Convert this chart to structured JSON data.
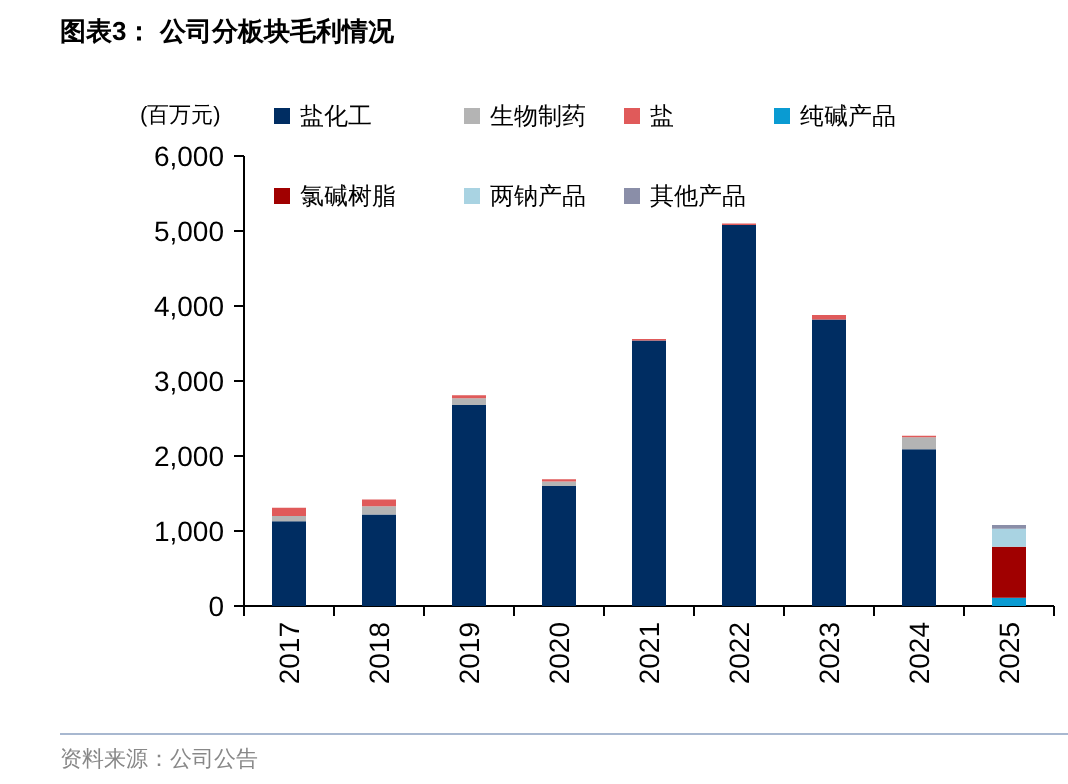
{
  "chart_data": {
    "type": "bar",
    "stacked": true,
    "title": "图表3：  公司分板块毛利情况",
    "ylabel": "(百万元)",
    "annotations": [
      "资料来源：公司公告"
    ],
    "categories": [
      "2017",
      "2018",
      "2019",
      "2020",
      "2021",
      "2022",
      "2023",
      "2024",
      "2025"
    ],
    "series": [
      {
        "name": "盐化工",
        "color": "#002d62",
        "values": [
          1130,
          1220,
          2680,
          1600,
          3540,
          5080,
          3820,
          2090,
          0
        ]
      },
      {
        "name": "生物制药",
        "color": "#b4b4b4",
        "values": [
          70,
          110,
          90,
          60,
          null,
          null,
          0,
          160,
          0
        ]
      },
      {
        "name": "盐",
        "color": "#e05a5a",
        "values": [
          110,
          90,
          40,
          30,
          20,
          20,
          60,
          20,
          0
        ]
      },
      {
        "name": "纯碱产品",
        "color": "#0a9bd2",
        "values": [
          0,
          0,
          0,
          0,
          0,
          0,
          0,
          0,
          110
        ]
      },
      {
        "name": "氯碱树脂",
        "color": "#a00000",
        "values": [
          0,
          0,
          0,
          0,
          0,
          0,
          0,
          0,
          680
        ]
      },
      {
        "name": "两钠产品",
        "color": "#a9d3e2",
        "values": [
          0,
          0,
          0,
          0,
          0,
          0,
          0,
          0,
          240
        ]
      },
      {
        "name": "其他产品",
        "color": "#8a8ea8",
        "values": [
          0,
          0,
          0,
          0,
          0,
          0,
          0,
          0,
          50
        ]
      }
    ],
    "ylim": [
      0,
      6000
    ],
    "yticks": [
      {
        "value": 0,
        "label": "0"
      },
      {
        "value": 1000,
        "label": "1,000"
      },
      {
        "value": 2000,
        "label": "2,000"
      },
      {
        "value": 3000,
        "label": "3,000"
      },
      {
        "value": 4000,
        "label": "4,000"
      },
      {
        "value": 5000,
        "label": "5,000"
      },
      {
        "value": 6000,
        "label": "6,000"
      }
    ],
    "grid": false,
    "legend": "top"
  }
}
